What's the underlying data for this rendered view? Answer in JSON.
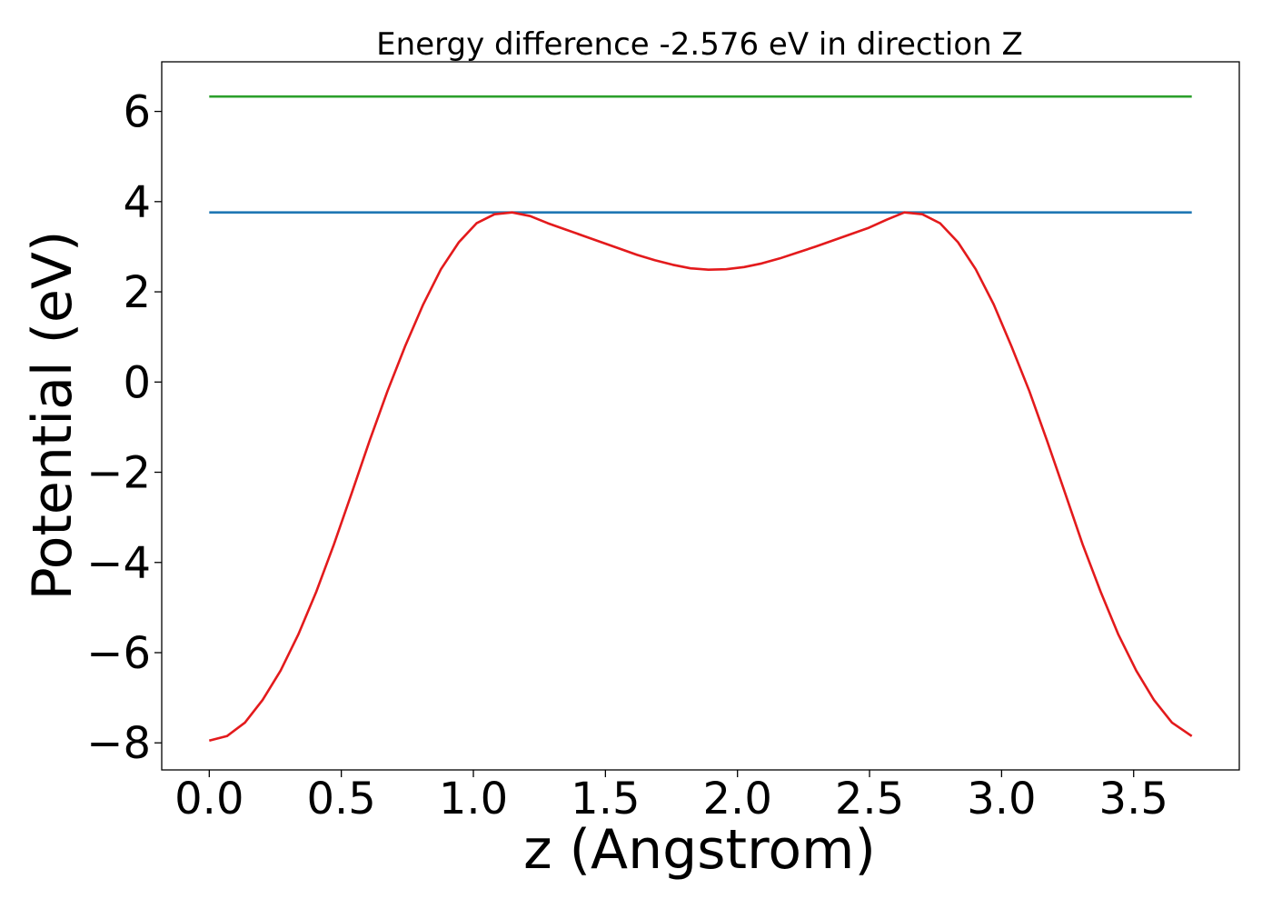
{
  "chart_data": {
    "type": "line",
    "title": "Energy difference -2.576 eV in direction Z",
    "xlabel": "z (Angstrom)",
    "ylabel": "Potential (eV)",
    "xlim": [
      -0.18,
      3.9
    ],
    "ylim": [
      -8.6,
      7.1
    ],
    "x_ticks": [
      0.0,
      0.5,
      1.0,
      1.5,
      2.0,
      2.5,
      3.0,
      3.5
    ],
    "x_tick_labels": [
      "0.0",
      "0.5",
      "1.0",
      "1.5",
      "2.0",
      "2.5",
      "3.0",
      "3.5"
    ],
    "y_ticks": [
      -8,
      -6,
      -4,
      -2,
      0,
      2,
      4,
      6
    ],
    "y_tick_labels": [
      "−8",
      "−6",
      "−4",
      "−2",
      "0",
      "2",
      "4",
      "6"
    ],
    "grid": false,
    "series": [
      {
        "color": "#2ca02c",
        "x": [
          0.0,
          3.72
        ],
        "y": [
          6.33,
          6.33
        ]
      },
      {
        "color": "#1f77b4",
        "x": [
          0.0,
          3.72
        ],
        "y": [
          3.76,
          3.76
        ]
      },
      {
        "color": "#e31a1c",
        "x": [
          0.0,
          0.067,
          0.135,
          0.202,
          0.27,
          0.337,
          0.405,
          0.472,
          0.54,
          0.607,
          0.675,
          0.742,
          0.81,
          0.877,
          0.945,
          1.012,
          1.08,
          1.147,
          1.215,
          1.282,
          1.35,
          1.417,
          1.485,
          1.552,
          1.62,
          1.687,
          1.755,
          1.822,
          1.89,
          1.957,
          2.025,
          2.092,
          2.16,
          2.227,
          2.295,
          2.362,
          2.43,
          2.497,
          2.565,
          2.632,
          2.7,
          2.767,
          2.835,
          2.902,
          2.97,
          3.037,
          3.105,
          3.172,
          3.24,
          3.307,
          3.375,
          3.442,
          3.51,
          3.577,
          3.645,
          3.72
        ],
        "y": [
          -7.95,
          -7.85,
          -7.55,
          -7.05,
          -6.4,
          -5.6,
          -4.65,
          -3.6,
          -2.45,
          -1.3,
          -0.2,
          0.8,
          1.72,
          2.5,
          3.1,
          3.52,
          3.72,
          3.76,
          3.68,
          3.52,
          3.38,
          3.24,
          3.1,
          2.96,
          2.82,
          2.7,
          2.6,
          2.52,
          2.49,
          2.5,
          2.55,
          2.63,
          2.74,
          2.87,
          3.0,
          3.14,
          3.28,
          3.42,
          3.6,
          3.76,
          3.72,
          3.52,
          3.1,
          2.5,
          1.72,
          0.8,
          -0.2,
          -1.3,
          -2.45,
          -3.6,
          -4.65,
          -5.6,
          -6.4,
          -7.05,
          -7.55,
          -7.85
        ]
      }
    ]
  }
}
